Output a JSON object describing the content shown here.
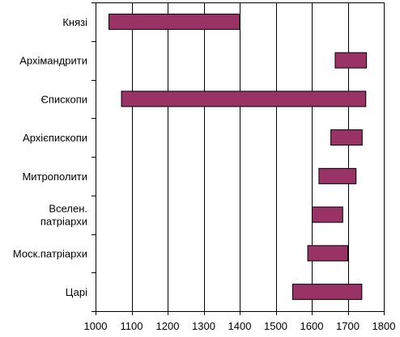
{
  "chart_data": {
    "type": "bar",
    "orientation": "horizontal",
    "subtype": "floating-range",
    "categories": [
      "Князі",
      "Архімандрити",
      "Єпископи",
      "Архієпископи",
      "Митрополити",
      "Вселен. патріархи",
      "Моск.патріархи",
      "Царі"
    ],
    "category_lines": [
      [
        "Князі"
      ],
      [
        "Архімандрити"
      ],
      [
        "Єпископи"
      ],
      [
        "Архієпископи"
      ],
      [
        "Митрополити"
      ],
      [
        "Вселен.",
        "патріархи"
      ],
      [
        "Моск.патріархи"
      ],
      [
        "Царі"
      ]
    ],
    "ranges": [
      [
        1037,
        1400
      ],
      [
        1665,
        1752
      ],
      [
        1072,
        1750
      ],
      [
        1653,
        1740
      ],
      [
        1620,
        1723
      ],
      [
        1601,
        1686
      ],
      [
        1589,
        1700
      ],
      [
        1547,
        1739
      ]
    ],
    "xlim": [
      1000,
      1800
    ],
    "xticks": [
      1000,
      1100,
      1200,
      1300,
      1400,
      1500,
      1600,
      1700,
      1800
    ],
    "xtick_labels": [
      "1000",
      "1100",
      "1200",
      "1300",
      "1400",
      "1500",
      "1600",
      "1700",
      "1800"
    ],
    "grid": "vertical",
    "legend": "none",
    "title": "",
    "xlabel": "",
    "ylabel": "",
    "colors": {
      "bar_fill": "#993366",
      "bar_stroke": "#000000",
      "grid": "#000000",
      "axis": "#000000"
    }
  }
}
